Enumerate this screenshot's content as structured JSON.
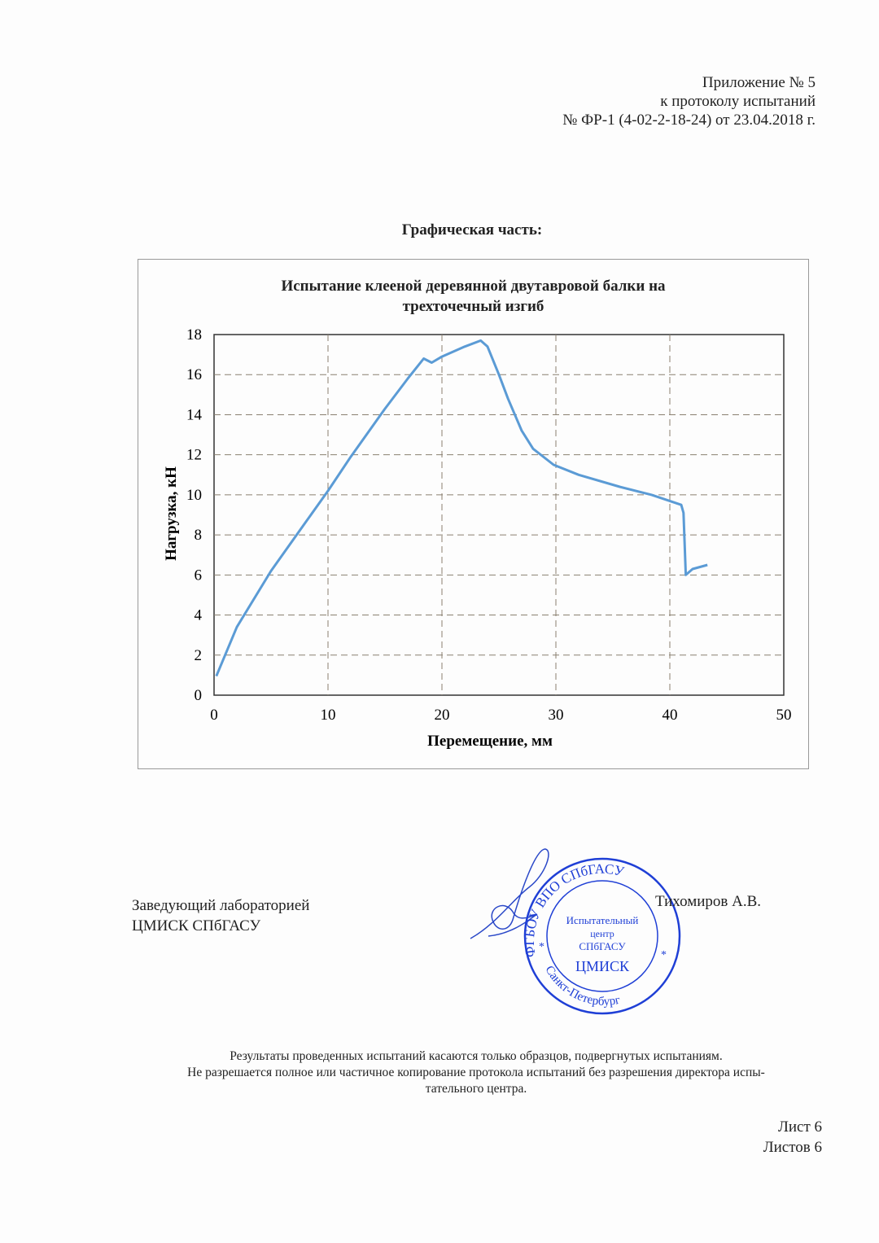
{
  "header": {
    "line1": "Приложение № 5",
    "line2": "к протоколу испытаний",
    "line3": "№ ФР-1 (4-02-2-18-24) от 23.04.2018 г."
  },
  "section_title": "Графическая часть:",
  "chart_data": {
    "type": "line",
    "title_line1": "Испытание клееной деревянной двутавровой балки на",
    "title_line2": "трехточечный изгиб",
    "xlabel": "Перемещение, мм",
    "ylabel": "Нагрузка, кН",
    "xlim": [
      0,
      50
    ],
    "ylim": [
      0,
      18
    ],
    "xticks": [
      "0",
      "10",
      "20",
      "30",
      "40",
      "50"
    ],
    "yticks": [
      "0",
      "2",
      "4",
      "6",
      "8",
      "10",
      "12",
      "14",
      "16",
      "18"
    ],
    "grid": true,
    "line_color": "#5b9bd5",
    "x": [
      0.2,
      2,
      5,
      8,
      10,
      12,
      15,
      17,
      18.4,
      19.1,
      20,
      22,
      23.4,
      24,
      25,
      25.8,
      27,
      28,
      29.8,
      32,
      35.6,
      38.4,
      41,
      41.2,
      41.4,
      42,
      43.3
    ],
    "y": [
      0.95,
      3.4,
      6.2,
      8.6,
      10.2,
      11.9,
      14.3,
      15.8,
      16.8,
      16.6,
      16.9,
      17.4,
      17.7,
      17.4,
      16,
      14.8,
      13.2,
      12.3,
      11.5,
      11.0,
      10.4,
      10.0,
      9.5,
      9.1,
      6.0,
      6.3,
      6.5
    ]
  },
  "signature": {
    "position_line1": "Заведующий лабораторией",
    "position_line2": "ЦМИСК СПбГАСУ",
    "name": "Тихомиров А.В."
  },
  "stamp": {
    "outer": "ФГБОУ ВПО СПбГАСУ",
    "inner1": "Испытательный",
    "inner2": "центр",
    "inner3": "СПбГАСУ",
    "inner4": "ЦМИСК",
    "bottom": "Санкт-Петербург",
    "color": "#1f3fd6"
  },
  "footer": {
    "line1": "Результаты проведенных испытаний касаются только образцов, подвергнутых испытаниям.",
    "line2": "Не разрешается полное или частичное копирование протокола испытаний без разрешения директора испы-",
    "line3": "тательного центра."
  },
  "sheet": {
    "sheet": "Лист 6",
    "total": "Листов 6"
  }
}
